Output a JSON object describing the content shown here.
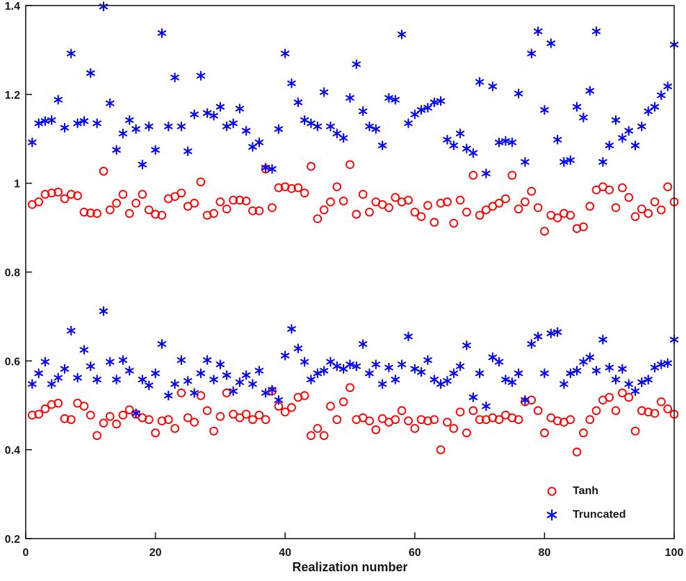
{
  "figure": {
    "background": "#ffffff",
    "axis_color": "#171717"
  },
  "chart_data": {
    "type": "scatter",
    "title": "",
    "xlabel": "Realization number",
    "ylabel": "",
    "xlim": [
      0,
      100
    ],
    "ylim": [
      0.2,
      1.4
    ],
    "xticks": [
      0,
      20,
      40,
      60,
      80,
      100
    ],
    "yticks": [
      0.2,
      0.4,
      0.6,
      0.8,
      1,
      1.2,
      1.4
    ],
    "ytick_labels": [
      "0.2",
      "0.4",
      "0.6",
      "0.8",
      "1",
      "1.2",
      "1.4"
    ],
    "grid": false,
    "legend_position": "south-east-inside",
    "x_values": [
      1,
      2,
      3,
      4,
      5,
      6,
      7,
      8,
      9,
      10,
      11,
      12,
      13,
      14,
      15,
      16,
      17,
      18,
      19,
      20,
      21,
      22,
      23,
      24,
      25,
      26,
      27,
      28,
      29,
      30,
      31,
      32,
      33,
      34,
      35,
      36,
      37,
      38,
      39,
      40,
      41,
      42,
      43,
      44,
      45,
      46,
      47,
      48,
      49,
      50,
      51,
      52,
      53,
      54,
      55,
      56,
      57,
      58,
      59,
      60,
      61,
      62,
      63,
      64,
      65,
      66,
      67,
      68,
      69,
      70,
      71,
      72,
      73,
      74,
      75,
      76,
      77,
      78,
      79,
      80,
      81,
      82,
      83,
      84,
      85,
      86,
      87,
      88,
      89,
      90,
      91,
      92,
      93,
      94,
      95,
      96,
      97,
      98,
      99,
      100
    ],
    "series": [
      {
        "name": "Tanh",
        "marker": "circle",
        "color": "#ff0000",
        "values_upper": [
          0.952,
          0.958,
          0.975,
          0.978,
          0.98,
          0.965,
          0.975,
          0.972,
          0.935,
          0.933,
          0.932,
          1.027,
          0.94,
          0.955,
          0.975,
          0.932,
          0.955,
          0.975,
          0.94,
          0.93,
          0.928,
          0.965,
          0.97,
          0.978,
          0.948,
          0.955,
          1.003,
          0.928,
          0.932,
          0.958,
          0.942,
          0.962,
          0.962,
          0.96,
          0.938,
          0.938,
          1.032,
          0.945,
          0.99,
          0.992,
          0.988,
          0.99,
          0.978,
          1.038,
          0.92,
          0.94,
          0.958,
          0.992,
          0.96,
          1.042,
          0.93,
          0.975,
          0.935,
          0.958,
          0.952,
          0.945,
          0.968,
          0.958,
          0.962,
          0.935,
          0.925,
          0.95,
          0.912,
          0.955,
          0.958,
          0.91,
          0.962,
          0.935,
          1.018,
          0.928,
          0.94,
          0.948,
          0.955,
          0.965,
          1.018,
          0.942,
          0.958,
          0.982,
          0.945,
          0.892,
          0.928,
          0.922,
          0.932,
          0.928,
          0.898,
          0.902,
          0.948,
          0.985,
          0.992,
          0.985,
          0.945,
          0.99,
          0.968,
          0.925,
          0.942,
          0.932,
          0.958,
          0.94,
          0.992,
          0.958
        ],
        "values_lower": [
          0.478,
          0.48,
          0.492,
          0.502,
          0.505,
          0.47,
          0.468,
          0.505,
          0.498,
          0.478,
          0.432,
          0.46,
          0.475,
          0.458,
          0.478,
          0.49,
          0.48,
          0.472,
          0.468,
          0.438,
          0.465,
          0.468,
          0.448,
          0.528,
          0.472,
          0.462,
          0.522,
          0.488,
          0.442,
          0.475,
          0.528,
          0.48,
          0.472,
          0.48,
          0.468,
          0.478,
          0.468,
          0.532,
          0.498,
          0.485,
          0.495,
          0.518,
          0.522,
          0.432,
          0.448,
          0.432,
          0.498,
          0.468,
          0.508,
          0.54,
          0.468,
          0.472,
          0.465,
          0.445,
          0.47,
          0.462,
          0.468,
          0.488,
          0.465,
          0.448,
          0.468,
          0.465,
          0.468,
          0.4,
          0.462,
          0.448,
          0.485,
          0.438,
          0.488,
          0.468,
          0.468,
          0.472,
          0.468,
          0.478,
          0.472,
          0.468,
          0.508,
          0.512,
          0.488,
          0.438,
          0.472,
          0.465,
          0.462,
          0.468,
          0.395,
          0.438,
          0.468,
          0.488,
          0.512,
          0.518,
          0.488,
          0.528,
          0.518,
          0.442,
          0.488,
          0.485,
          0.482,
          0.508,
          0.492,
          0.48
        ]
      },
      {
        "name": "Truncated",
        "marker": "asterisk",
        "color": "#0000f5",
        "values_upper": [
          1.092,
          1.135,
          1.14,
          1.142,
          1.188,
          1.125,
          1.292,
          1.135,
          1.14,
          1.248,
          1.135,
          1.398,
          1.18,
          1.075,
          1.112,
          1.142,
          1.122,
          1.042,
          1.128,
          1.075,
          1.338,
          1.128,
          1.238,
          1.128,
          1.072,
          1.155,
          1.242,
          1.158,
          1.152,
          1.172,
          1.128,
          1.135,
          1.168,
          1.118,
          1.082,
          1.092,
          1.035,
          1.032,
          1.122,
          1.292,
          1.225,
          1.182,
          1.142,
          1.135,
          1.128,
          1.205,
          1.128,
          1.112,
          1.102,
          1.192,
          1.268,
          1.162,
          1.128,
          1.122,
          1.085,
          1.192,
          1.188,
          1.335,
          1.135,
          1.155,
          1.165,
          1.17,
          1.182,
          1.185,
          1.098,
          1.085,
          1.112,
          1.078,
          1.068,
          1.228,
          1.022,
          1.218,
          1.092,
          1.095,
          1.092,
          1.202,
          1.048,
          1.292,
          1.342,
          1.165,
          1.315,
          1.098,
          1.048,
          1.052,
          1.172,
          1.148,
          1.208,
          1.342,
          1.048,
          1.085,
          1.142,
          1.102,
          1.118,
          1.085,
          1.128,
          1.162,
          1.172,
          1.198,
          1.218,
          1.312
        ],
        "values_lower": [
          0.548,
          0.572,
          0.598,
          0.548,
          0.562,
          0.582,
          0.668,
          0.562,
          0.625,
          0.588,
          0.558,
          0.712,
          0.598,
          0.558,
          0.602,
          0.578,
          0.482,
          0.558,
          0.545,
          0.572,
          0.638,
          0.522,
          0.548,
          0.602,
          0.555,
          0.528,
          0.572,
          0.602,
          0.558,
          0.592,
          0.568,
          0.532,
          0.552,
          0.568,
          0.548,
          0.578,
          0.528,
          0.535,
          0.512,
          0.612,
          0.672,
          0.628,
          0.598,
          0.558,
          0.572,
          0.578,
          0.598,
          0.588,
          0.582,
          0.592,
          0.588,
          0.638,
          0.572,
          0.592,
          0.548,
          0.585,
          0.558,
          0.592,
          0.655,
          0.582,
          0.575,
          0.602,
          0.558,
          0.548,
          0.555,
          0.572,
          0.588,
          0.635,
          0.518,
          0.572,
          0.498,
          0.608,
          0.598,
          0.558,
          0.552,
          0.572,
          0.512,
          0.638,
          0.655,
          0.572,
          0.662,
          0.665,
          0.548,
          0.572,
          0.578,
          0.598,
          0.608,
          0.578,
          0.648,
          0.585,
          0.558,
          0.582,
          0.548,
          0.532,
          0.552,
          0.558,
          0.585,
          0.592,
          0.595,
          0.648
        ]
      }
    ]
  }
}
